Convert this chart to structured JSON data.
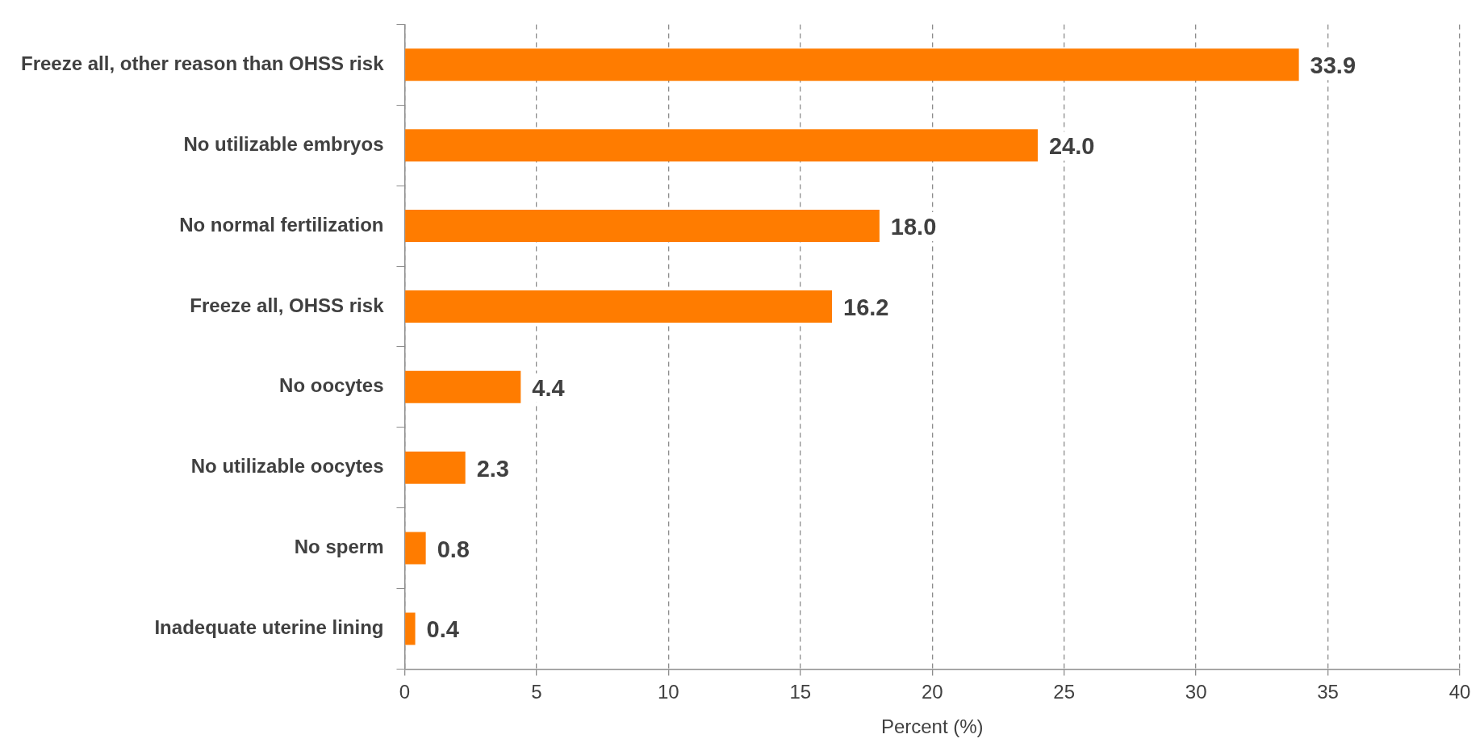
{
  "chart_data": {
    "type": "bar",
    "orientation": "horizontal",
    "xlabel": "Percent (%)",
    "categories": [
      "Freeze all, other reason than OHSS risk",
      "No utilizable embryos",
      "No normal fertilization",
      "Freeze all, OHSS risk",
      "No oocytes",
      "No utilizable oocytes",
      "No sperm",
      "Inadequate uterine lining"
    ],
    "values": [
      33.9,
      24.0,
      18.0,
      16.2,
      4.4,
      2.3,
      0.8,
      0.4
    ],
    "value_labels": [
      "33.9",
      "24.0",
      "18.0",
      "16.2",
      "4.4",
      "2.3",
      "0.8",
      "0.4"
    ],
    "color": "#ff7c00",
    "xlim": [
      0,
      40
    ],
    "xticks": [
      0,
      5,
      10,
      15,
      20,
      25,
      30,
      35,
      40
    ],
    "grid": "x",
    "legend": false
  }
}
